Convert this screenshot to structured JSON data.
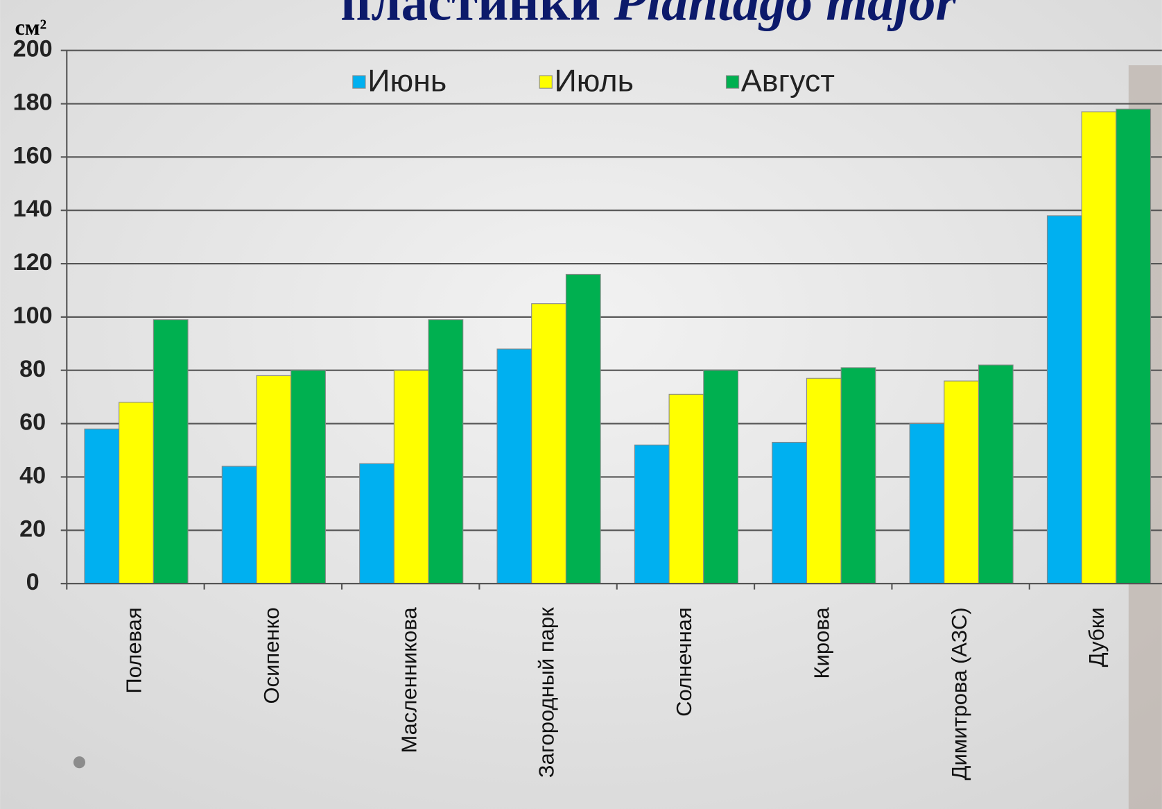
{
  "chart_data": {
    "type": "bar",
    "title": "пластинки",
    "title_italic": "Plantago major",
    "y_label": "см²",
    "categories": [
      "Полевая",
      "Осипенко",
      "Масленникова",
      "Загородный парк",
      "Солнечная",
      "Кирова",
      "Димитрова (АЗС)",
      "Дубки"
    ],
    "series": [
      {
        "name": "Июнь",
        "color": "#00b0f0",
        "values": [
          58,
          44,
          45,
          88,
          52,
          53,
          60,
          138
        ]
      },
      {
        "name": "Июль",
        "color": "#ffff00",
        "values": [
          68,
          78,
          80,
          105,
          71,
          77,
          76,
          177
        ]
      },
      {
        "name": "Август",
        "color": "#00b050",
        "values": [
          99,
          80,
          99,
          116,
          80,
          81,
          82,
          178
        ]
      }
    ],
    "ylim": [
      0,
      200
    ],
    "yticks": [
      0,
      20,
      40,
      60,
      80,
      100,
      120,
      140,
      160,
      180,
      200
    ],
    "grid": true,
    "legend": "top"
  }
}
